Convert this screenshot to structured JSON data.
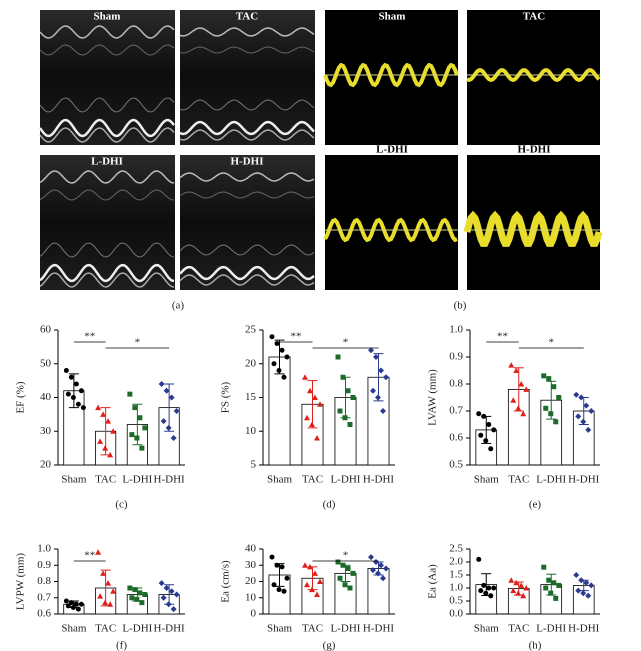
{
  "panel_a": {
    "labels": [
      "Sham",
      "TAC",
      "L-DHI",
      "H-DHI"
    ],
    "caption": "(a)"
  },
  "panel_b": {
    "labels": [
      "Sham",
      "TAC",
      "L-DHI",
      "H-DHI"
    ],
    "caption": "(b)"
  },
  "chart_data": [
    {
      "type": "bar",
      "caption": "(c)",
      "y_label": "EF (%)",
      "categories": [
        "Sham",
        "TAC",
        "L-DHI",
        "H-DHI"
      ],
      "colors": [
        "#000000",
        "#e0201b",
        "#1d6b2a",
        "#2b3a8f"
      ],
      "values": [
        42,
        30,
        32,
        37
      ],
      "errors": [
        5,
        7,
        6,
        7
      ],
      "points": [
        [
          48,
          46,
          44,
          42,
          41,
          40,
          38,
          37
        ],
        [
          37,
          35,
          33,
          30,
          27,
          25,
          23
        ],
        [
          41,
          37,
          34,
          31,
          29,
          28,
          25
        ],
        [
          44,
          42,
          40,
          36,
          33,
          31,
          28
        ]
      ],
      "ylim": [
        20,
        60
      ],
      "yticks": [
        20,
        30,
        40,
        50,
        60
      ],
      "annotations": [
        {
          "text": "**",
          "between": [
            "Sham",
            "TAC"
          ]
        },
        {
          "text": "*",
          "between": [
            "TAC",
            "H-DHI"
          ]
        }
      ]
    },
    {
      "type": "bar",
      "caption": "(d)",
      "y_label": "FS (%)",
      "categories": [
        "Sham",
        "TAC",
        "L-DHI",
        "H-DHI"
      ],
      "colors": [
        "#000000",
        "#e0201b",
        "#1d6b2a",
        "#2b3a8f"
      ],
      "values": [
        21,
        14,
        15,
        18
      ],
      "errors": [
        2.5,
        3.5,
        3,
        3.5
      ],
      "points": [
        [
          24,
          23,
          22,
          21,
          20,
          19,
          18
        ],
        [
          18,
          16,
          15,
          14,
          12,
          11,
          9
        ],
        [
          21,
          18,
          16,
          15,
          13,
          12,
          11
        ],
        [
          22,
          21,
          19,
          18,
          16,
          15,
          13
        ]
      ],
      "ylim": [
        5,
        25
      ],
      "yticks": [
        5,
        10,
        15,
        20,
        25
      ],
      "annotations": [
        {
          "text": "**",
          "between": [
            "Sham",
            "TAC"
          ]
        },
        {
          "text": "*",
          "between": [
            "TAC",
            "H-DHI"
          ]
        }
      ]
    },
    {
      "type": "bar",
      "caption": "(e)",
      "y_label": "LVAW (mm)",
      "categories": [
        "Sham",
        "TAC",
        "L-DHI",
        "H-DHI"
      ],
      "colors": [
        "#000000",
        "#e0201b",
        "#1d6b2a",
        "#2b3a8f"
      ],
      "values": [
        0.63,
        0.78,
        0.74,
        0.7
      ],
      "errors": [
        0.05,
        0.08,
        0.07,
        0.05
      ],
      "points": [
        [
          0.69,
          0.68,
          0.65,
          0.63,
          0.61,
          0.59,
          0.56
        ],
        [
          0.87,
          0.85,
          0.8,
          0.78,
          0.74,
          0.71,
          0.69
        ],
        [
          0.83,
          0.82,
          0.79,
          0.75,
          0.71,
          0.69,
          0.66
        ],
        [
          0.76,
          0.75,
          0.72,
          0.7,
          0.68,
          0.66,
          0.63
        ]
      ],
      "ylim": [
        0.5,
        1.0
      ],
      "yticks": [
        0.5,
        0.6,
        0.7,
        0.8,
        0.9,
        {
          "value": 1.0,
          "label": "1.0"
        }
      ],
      "annotations": [
        {
          "text": "**",
          "between": [
            "Sham",
            "TAC"
          ]
        },
        {
          "text": "*",
          "between": [
            "TAC",
            "H-DHI"
          ]
        }
      ]
    },
    {
      "type": "bar",
      "caption": "(f)",
      "y_label": "LVPW (mm)",
      "categories": [
        "Sham",
        "TAC",
        "L-DHI",
        "H-DHI"
      ],
      "colors": [
        "#000000",
        "#e0201b",
        "#1d6b2a",
        "#2b3a8f"
      ],
      "values": [
        0.66,
        0.76,
        0.72,
        0.72
      ],
      "errors": [
        0.02,
        0.11,
        0.04,
        0.06
      ],
      "points": [
        [
          0.68,
          0.67,
          0.66,
          0.66,
          0.65,
          0.64,
          0.63
        ],
        [
          0.98,
          0.85,
          0.79,
          0.74,
          0.71,
          0.67,
          0.66
        ],
        [
          0.76,
          0.75,
          0.73,
          0.72,
          0.7,
          0.69,
          0.67
        ],
        [
          0.79,
          0.76,
          0.74,
          0.72,
          0.7,
          0.66,
          0.63
        ]
      ],
      "ylim": [
        0.6,
        1.0
      ],
      "yticks": [
        0.6,
        0.7,
        0.8,
        0.9,
        {
          "value": 1.0,
          "label": "1.0"
        }
      ],
      "annotations": [
        {
          "text": "**",
          "between": [
            "Sham",
            "TAC"
          ]
        }
      ]
    },
    {
      "type": "bar",
      "caption": "(g)",
      "y_label": "Ea (cm/s)",
      "categories": [
        "Sham",
        "TAC",
        "L-DHI",
        "H-DHI"
      ],
      "colors": [
        "#000000",
        "#e0201b",
        "#1d6b2a",
        "#2b3a8f"
      ],
      "values": [
        24,
        22,
        25,
        28
      ],
      "errors": [
        7,
        7,
        5,
        4
      ],
      "points": [
        [
          35,
          30,
          29,
          22,
          18,
          15,
          14
        ],
        [
          30,
          29,
          25,
          20,
          18,
          15,
          12
        ],
        [
          32,
          30,
          28,
          25,
          22,
          18,
          16
        ],
        [
          35,
          32,
          30,
          28,
          27,
          25,
          22
        ]
      ],
      "ylim": [
        0,
        40
      ],
      "yticks": [
        0,
        10,
        20,
        30,
        40
      ],
      "annotations": [
        {
          "text": "*",
          "between": [
            "TAC",
            "H-DHI"
          ]
        }
      ]
    },
    {
      "type": "bar",
      "caption": "(h)",
      "y_label": "Ea (Aa)",
      "categories": [
        "Sham",
        "TAC",
        "L-DHI",
        "H-DHI"
      ],
      "colors": [
        "#000000",
        "#e0201b",
        "#1d6b2a",
        "#2b3a8f"
      ],
      "values": [
        1.13,
        0.98,
        1.13,
        1.1
      ],
      "errors": [
        0.42,
        0.25,
        0.4,
        0.2
      ],
      "points": [
        [
          2.1,
          1.1,
          1.0,
          1.0,
          0.9,
          0.8,
          0.7
        ],
        [
          1.3,
          1.2,
          1.1,
          1.0,
          0.9,
          0.8,
          0.7
        ],
        [
          1.8,
          1.3,
          1.2,
          1.1,
          1.0,
          0.8,
          0.6
        ],
        [
          1.5,
          1.3,
          1.2,
          1.1,
          0.9,
          0.8,
          0.7
        ]
      ],
      "ylim": [
        0,
        2.5
      ],
      "yticks": [
        {
          "value": 0,
          "label": "0.0"
        },
        0.5,
        {
          "value": 1,
          "label": "1.0"
        },
        1.5,
        {
          "value": 2,
          "label": "2.0"
        },
        2.5
      ]
    }
  ]
}
